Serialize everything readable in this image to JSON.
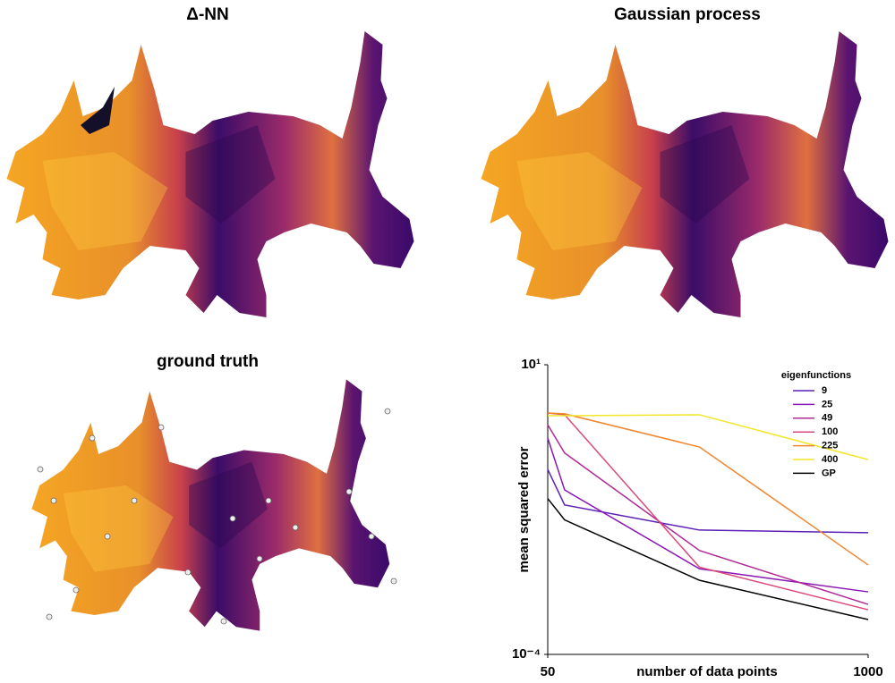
{
  "figure": {
    "panels": [
      {
        "title": "Δ-NN"
      },
      {
        "title": "Gaussian process"
      },
      {
        "title": "ground truth"
      }
    ]
  },
  "chart_data": {
    "type": "line",
    "x_label": "number of data points",
    "y_label": "mean squared error",
    "x": [
      50,
      100,
      500,
      1000
    ],
    "xlim": [
      50,
      1000
    ],
    "xticks": [
      50,
      1000
    ],
    "ylim": [
      0.0001,
      10
    ],
    "ylog": true,
    "yticks": [
      {
        "value": 10,
        "label": "10¹"
      },
      {
        "value": 0.0001,
        "label": "10⁻⁴"
      }
    ],
    "legend_title": "eigenfunctions",
    "legend_position": "upper right",
    "series": [
      {
        "name": "9",
        "color": "#5b1fb5",
        "values": [
          0.156,
          0.038,
          0.014,
          0.0126
        ]
      },
      {
        "name": "25",
        "color": "#8a16b5",
        "values": [
          0.54,
          0.069,
          0.003,
          0.0012
        ]
      },
      {
        "name": "49",
        "color": "#b02a98",
        "values": [
          0.92,
          0.3,
          0.0062,
          0.00073
        ]
      },
      {
        "name": "100",
        "color": "#d94a7a",
        "values": [
          1.47,
          1.37,
          0.0032,
          0.00059
        ]
      },
      {
        "name": "225",
        "color": "#f0852e",
        "values": [
          1.47,
          1.42,
          0.38,
          0.0035
        ]
      },
      {
        "name": "400",
        "color": "#f2e626",
        "values": [
          1.32,
          1.32,
          1.37,
          0.23
        ]
      },
      {
        "name": "GP",
        "color": "#000000",
        "values": [
          0.049,
          0.021,
          0.0019,
          0.0004
        ]
      }
    ]
  }
}
